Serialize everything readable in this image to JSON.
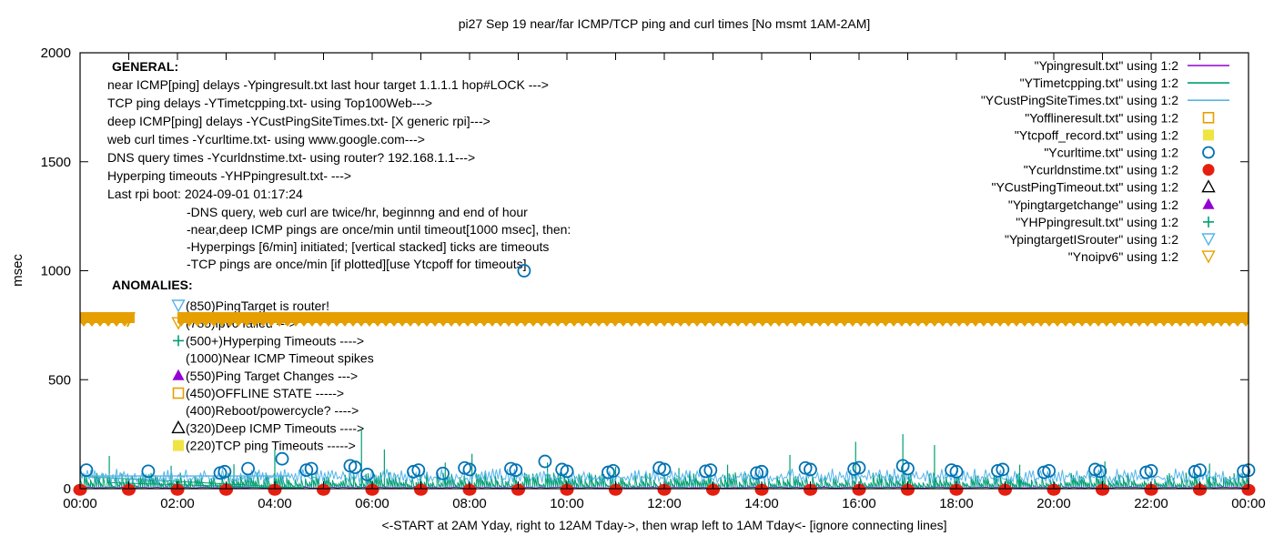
{
  "title": "pi27 Sep 19  near/far ICMP/TCP ping and curl times [No msmt 1AM-2AM]",
  "xlabel": "<-START at 2AM Yday, right to 12AM Tday->, then wrap left to 1AM Tday<- [ignore connecting lines]",
  "ylabel": "msec",
  "general": {
    "heading": "GENERAL:",
    "lines": [
      "near ICMP[ping] delays -Ypingresult.txt last hour target 1.1.1.1 hop#LOCK --->",
      "TCP ping delays -YTimetcpping.txt- using Top100Web--->",
      "deep ICMP[ping] delays -YCustPingSiteTimes.txt- [X generic rpi]--->",
      "web curl times -Ycurltime.txt- using www.google.com--->",
      "DNS query times -Ycurldnstime.txt- using router? 192.168.1.1--->",
      "Hyperping timeouts -YHPpingresult.txt- --->",
      "Last rpi boot: 2024-09-01 01:17:24"
    ],
    "notes": [
      "-DNS query, web curl are twice/hr, beginnng and end of hour",
      "-near,deep ICMP pings are once/min until timeout[1000 msec], then:",
      " -Hyperpings [6/min] initiated; [vertical stacked] ticks are timeouts",
      "-TCP pings are once/min [if plotted][use Ytcpoff for timeouts]"
    ]
  },
  "anomalies": {
    "heading": "ANOMALIES:",
    "items": [
      {
        "marker": "triangle-down-open",
        "color": "#56b4e9",
        "text": "(850)PingTarget is router!"
      },
      {
        "marker": "triangle-down-open",
        "color": "#e69f00",
        "text": "(785)ipv6 failed --->"
      },
      {
        "marker": "plus",
        "color": "#009e73",
        "text": "(500+)Hyperping Timeouts ---->"
      },
      {
        "marker": "none",
        "color": "#000000",
        "text": "(1000)Near ICMP Timeout spikes"
      },
      {
        "marker": "triangle-filled",
        "color": "#9400d3",
        "text": "(550)Ping Target Changes --->"
      },
      {
        "marker": "square-open",
        "color": "#e69f00",
        "text": "(450)OFFLINE STATE ----->"
      },
      {
        "marker": "none",
        "color": "#000000",
        "text": "(400)Reboot/powercycle? ---->"
      },
      {
        "marker": "triangle-open",
        "color": "#000000",
        "text": "(320)Deep ICMP Timeouts ---->"
      },
      {
        "marker": "square-filled",
        "color": "#f0e442",
        "text": "(220)TCP ping Timeouts ----->"
      }
    ]
  },
  "legend": [
    {
      "label": "\"Ypingresult.txt\" using 1:2",
      "type": "line",
      "color": "#9400d3"
    },
    {
      "label": "\"YTimetcpping.txt\" using 1:2",
      "type": "line",
      "color": "#009e73"
    },
    {
      "label": "\"YCustPingSiteTimes.txt\" using 1:2",
      "type": "line",
      "color": "#56b4e9"
    },
    {
      "label": "\"Yofflineresult.txt\" using 1:2",
      "type": "square-open",
      "color": "#e69f00"
    },
    {
      "label": "\"Ytcpoff_record.txt\" using 1:2",
      "type": "square-filled",
      "color": "#f0e442"
    },
    {
      "label": "\"Ycurltime.txt\" using 1:2",
      "type": "circle-open",
      "color": "#0072b2"
    },
    {
      "label": "\"Ycurldnstime.txt\" using 1:2",
      "type": "circle-filled",
      "color": "#e51e10"
    },
    {
      "label": "\"YCustPingTimeout.txt\" using 1:2",
      "type": "triangle-open",
      "color": "#000000"
    },
    {
      "label": "\"Ypingtargetchange\" using 1:2",
      "type": "triangle-filled",
      "color": "#9400d3"
    },
    {
      "label": "\"YHPpingresult.txt\" using 1:2",
      "type": "plus",
      "color": "#009e73"
    },
    {
      "label": "\"YpingtargetISrouter\" using 1:2",
      "type": "triangle-down-open",
      "color": "#56b4e9"
    },
    {
      "label": "\"Ynoipv6\" using 1:2",
      "type": "triangle-down-open",
      "color": "#e69f00"
    }
  ],
  "chart_data": {
    "type": "line",
    "title": "pi27 Sep 19  near/far ICMP/TCP ping and curl times [No msmt 1AM-2AM]",
    "xlabel": "<-START at 2AM Yday, right to 12AM Tday->, then wrap left to 1AM Tday<- [ignore connecting lines]",
    "ylabel": "msec",
    "ylim": [
      0,
      2000
    ],
    "yticks": [
      0,
      500,
      1000,
      1500,
      2000
    ],
    "x_hours": 24,
    "xtick_labels": [
      "00:00",
      "02:00",
      "04:00",
      "06:00",
      "08:00",
      "10:00",
      "12:00",
      "14:00",
      "16:00",
      "18:00",
      "20:00",
      "22:00",
      "00:00"
    ],
    "grid": false,
    "legend_position": "top-right",
    "series": [
      {
        "name": "Ypingresult.txt",
        "kind": "near ICMP ping delay",
        "style": "line",
        "color": "#9400d3",
        "baseline_msec": 3,
        "noise_msec": 4
      },
      {
        "name": "YTimetcpping.txt",
        "kind": "TCP ping delay",
        "style": "spike-comb",
        "color": "#009e73",
        "low_msec": 3,
        "high_msec_range": [
          18,
          75
        ],
        "tall_spikes": [
          [
            0.6,
            150
          ],
          [
            1.87,
            105
          ],
          [
            3.16,
            112
          ],
          [
            4.0,
            180
          ],
          [
            5.78,
            275
          ],
          [
            6.25,
            180
          ],
          [
            7.5,
            120
          ],
          [
            8.05,
            160
          ],
          [
            9.6,
            120
          ],
          [
            11.0,
            100
          ],
          [
            12.3,
            95
          ],
          [
            13.3,
            110
          ],
          [
            14.58,
            155
          ],
          [
            15.93,
            215
          ],
          [
            16.9,
            250
          ],
          [
            17.55,
            200
          ],
          [
            19.3,
            110
          ],
          [
            21.05,
            125
          ],
          [
            23.2,
            115
          ]
        ]
      },
      {
        "name": "YCustPingSiteTimes.txt",
        "kind": "deep ICMP ping delay",
        "style": "noisy-line",
        "color": "#56b4e9",
        "range_msec": [
          25,
          92
        ],
        "flat_segment": {
          "y": 58,
          "from_h": 0,
          "to_h": 4.3
        }
      },
      {
        "name": "Ycurltime.txt",
        "kind": "web curl time",
        "style": "points",
        "marker": "circle-open",
        "color": "#0072b2",
        "points": [
          [
            0.13,
            85
          ],
          [
            1.4,
            80
          ],
          [
            2.88,
            72
          ],
          [
            2.97,
            78
          ],
          [
            3.45,
            92
          ],
          [
            4.15,
            137
          ],
          [
            4.65,
            85
          ],
          [
            4.75,
            92
          ],
          [
            5.55,
            105
          ],
          [
            5.65,
            98
          ],
          [
            5.9,
            65
          ],
          [
            6.85,
            78
          ],
          [
            6.95,
            85
          ],
          [
            7.45,
            70
          ],
          [
            7.9,
            95
          ],
          [
            8.0,
            88
          ],
          [
            8.85,
            92
          ],
          [
            8.95,
            85
          ],
          [
            9.12,
            1000
          ],
          [
            9.55,
            125
          ],
          [
            9.9,
            88
          ],
          [
            10.0,
            80
          ],
          [
            10.85,
            75
          ],
          [
            10.95,
            82
          ],
          [
            11.9,
            95
          ],
          [
            12.0,
            88
          ],
          [
            12.85,
            80
          ],
          [
            12.95,
            85
          ],
          [
            13.9,
            72
          ],
          [
            14.0,
            78
          ],
          [
            14.9,
            95
          ],
          [
            15.0,
            88
          ],
          [
            15.9,
            90
          ],
          [
            16.0,
            96
          ],
          [
            16.9,
            105
          ],
          [
            17.0,
            92
          ],
          [
            17.9,
            85
          ],
          [
            18.0,
            78
          ],
          [
            18.85,
            82
          ],
          [
            18.95,
            88
          ],
          [
            19.8,
            75
          ],
          [
            19.9,
            82
          ],
          [
            20.85,
            88
          ],
          [
            20.95,
            80
          ],
          [
            21.9,
            75
          ],
          [
            22.0,
            82
          ],
          [
            22.9,
            78
          ],
          [
            23.0,
            85
          ],
          [
            23.9,
            80
          ],
          [
            24.0,
            85
          ]
        ]
      },
      {
        "name": "Ycurldnstime.txt",
        "kind": "DNS query time",
        "style": "points",
        "marker": "circle-filled",
        "color": "#e51e10",
        "hourly_value_msec": 3,
        "hours": [
          0,
          1,
          2,
          3,
          4,
          5,
          6,
          7,
          8,
          9,
          10,
          11,
          12,
          13,
          14,
          15,
          16,
          17,
          18,
          19,
          20,
          21,
          22,
          23,
          24
        ]
      },
      {
        "name": "Ynoipv6",
        "kind": "ipv6 failed flag",
        "style": "band",
        "marker": "triangle-down-open",
        "color": "#e69f00",
        "band_msec": 785,
        "band_segments_h": [
          [
            0,
            1.12
          ],
          [
            2.0,
            24
          ]
        ]
      }
    ],
    "connecting_lines": [
      [
        0.15,
        55,
        4.6,
        3
      ],
      [
        0.55,
        28,
        4.35,
        2
      ]
    ],
    "annotations_note": "No measurement 1AM-2AM gap in the 785-msec ipv6-failed band"
  }
}
